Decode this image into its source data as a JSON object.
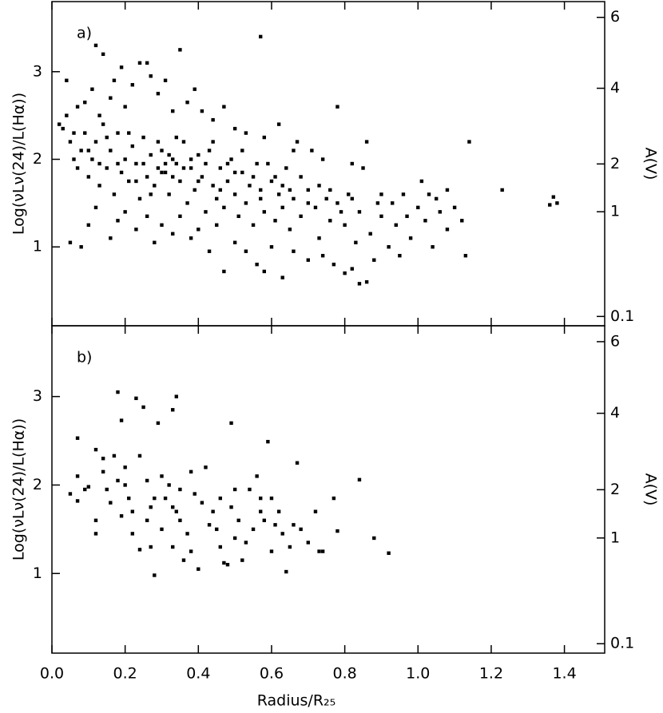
{
  "chart_data": [
    {
      "type": "scatter",
      "panel_label": "a)",
      "ylabel": "Log(νLν(24)/L(Hα))",
      "y2label": "A(V)",
      "color": "#000000",
      "x": [
        0.02,
        0.03,
        0.04,
        0.05,
        0.06,
        0.07,
        0.08,
        0.09,
        0.1,
        0.11,
        0.12,
        0.13,
        0.14,
        0.15,
        0.16,
        0.17,
        0.18,
        0.19,
        0.2,
        0.21,
        0.22,
        0.23,
        0.24,
        0.25,
        0.26,
        0.27,
        0.28,
        0.29,
        0.3,
        0.31,
        0.32,
        0.33,
        0.34,
        0.35,
        0.36,
        0.37,
        0.38,
        0.39,
        0.4,
        0.41,
        0.42,
        0.43,
        0.44,
        0.45,
        0.46,
        0.47,
        0.48,
        0.49,
        0.5,
        0.51,
        0.52,
        0.53,
        0.54,
        0.55,
        0.56,
        0.57,
        0.58,
        0.6,
        0.61,
        0.62,
        0.63,
        0.64,
        0.65,
        0.66,
        0.67,
        0.68,
        0.7,
        0.72,
        0.73,
        0.75,
        0.76,
        0.78,
        0.8,
        0.81,
        0.83,
        0.84,
        0.86,
        0.87,
        0.89,
        0.9,
        0.92,
        0.94,
        0.96,
        0.98,
        1.0,
        1.02,
        1.04,
        1.06,
        1.08,
        1.1,
        1.12,
        1.03,
        1.05,
        0.04,
        0.07,
        0.09,
        0.11,
        0.12,
        0.14,
        0.13,
        0.16,
        0.17,
        0.19,
        0.2,
        0.22,
        0.24,
        0.26,
        0.27,
        0.29,
        0.31,
        0.33,
        0.35,
        0.37,
        0.39,
        0.41,
        0.44,
        0.47,
        0.5,
        0.53,
        0.57,
        0.58,
        0.62,
        0.66,
        0.71,
        0.74,
        0.78,
        0.82,
        0.85,
        0.05,
        0.08,
        0.1,
        0.12,
        0.16,
        0.18,
        0.2,
        0.23,
        0.26,
        0.28,
        0.3,
        0.33,
        0.35,
        0.38,
        0.4,
        0.43,
        0.45,
        0.47,
        0.5,
        0.53,
        0.56,
        0.58,
        0.6,
        0.63,
        0.66,
        0.7,
        0.74,
        0.77,
        0.8,
        0.82,
        0.84,
        0.86,
        0.88,
        0.95,
        1.13,
        0.06,
        0.1,
        0.13,
        0.15,
        0.18,
        0.21,
        0.23,
        0.25,
        0.27,
        0.29,
        0.3,
        0.31,
        0.32,
        0.33,
        0.34,
        0.36,
        0.38,
        0.4,
        0.42,
        0.44,
        0.46,
        0.48,
        0.5,
        0.52,
        0.55,
        0.57,
        0.59,
        0.61,
        0.63,
        0.65,
        0.68,
        0.7,
        0.73,
        0.76,
        0.79,
        0.82,
        0.9,
        0.93,
        0.97,
        1.14,
        1.23,
        1.36,
        1.37,
        1.38,
        1.01,
        1.08
      ],
      "y": [
        2.4,
        2.35,
        2.5,
        2.2,
        2.0,
        1.9,
        2.1,
        2.3,
        1.8,
        2.0,
        2.2,
        1.7,
        2.4,
        1.9,
        2.1,
        1.6,
        2.3,
        1.85,
        2.0,
        1.75,
        2.15,
        1.95,
        1.55,
        2.25,
        1.8,
        2.05,
        1.7,
        1.9,
        2.1,
        1.85,
        1.6,
        2.0,
        1.95,
        1.75,
        2.2,
        1.5,
        1.9,
        1.65,
        2.05,
        1.8,
        1.4,
        2.1,
        1.7,
        1.55,
        1.9,
        1.45,
        1.75,
        2.0,
        1.6,
        1.35,
        1.85,
        1.5,
        1.7,
        1.25,
        1.95,
        1.55,
        1.4,
        1.75,
        1.3,
        1.6,
        1.45,
        1.9,
        1.2,
        1.55,
        2.2,
        1.35,
        1.65,
        1.45,
        1.1,
        1.55,
        1.3,
        1.5,
        1.25,
        1.6,
        1.05,
        1.4,
        2.2,
        1.15,
        1.5,
        1.35,
        1.0,
        1.25,
        1.6,
        1.1,
        1.45,
        1.3,
        1.0,
        1.4,
        1.2,
        1.45,
        1.3,
        1.6,
        1.55,
        2.9,
        2.6,
        2.65,
        2.8,
        3.3,
        3.2,
        2.5,
        2.7,
        2.9,
        3.05,
        2.6,
        2.85,
        3.1,
        3.1,
        2.95,
        2.75,
        2.9,
        2.55,
        3.25,
        2.65,
        2.8,
        2.55,
        2.45,
        2.6,
        2.35,
        2.3,
        3.4,
        2.25,
        2.4,
        2.1,
        2.1,
        2.0,
        2.6,
        1.95,
        1.9,
        1.05,
        1.0,
        1.25,
        1.45,
        1.1,
        1.3,
        1.4,
        1.2,
        1.35,
        1.05,
        1.25,
        1.15,
        1.35,
        1.1,
        1.2,
        0.95,
        1.25,
        0.72,
        1.05,
        0.95,
        0.8,
        0.72,
        1.0,
        0.65,
        0.95,
        0.85,
        0.9,
        0.8,
        0.7,
        0.75,
        0.58,
        0.6,
        0.85,
        0.9,
        0.9,
        2.3,
        2.1,
        1.95,
        2.25,
        1.95,
        2.3,
        1.75,
        1.95,
        1.6,
        2.2,
        1.85,
        1.95,
        2.05,
        1.8,
        2.25,
        1.9,
        2.0,
        1.75,
        1.95,
        2.2,
        1.65,
        1.95,
        1.85,
        2.1,
        1.8,
        1.65,
        1.95,
        1.8,
        1.7,
        1.65,
        1.8,
        1.5,
        1.7,
        1.65,
        1.4,
        1.55,
        1.6,
        1.5,
        1.35,
        2.2,
        1.65,
        1.48,
        1.57,
        1.5,
        1.75,
        1.65
      ],
      "ylim": [
        0.1,
        3.8
      ],
      "yticks": [
        1,
        2,
        3
      ],
      "y2scale": "extinction",
      "y2ticks": [
        0.1,
        1,
        2,
        4,
        6
      ]
    },
    {
      "type": "scatter",
      "panel_label": "b)",
      "ylabel": "Log(νLν(24)/L(Hα))",
      "y2label": "A(V)",
      "xlabel": "Radius/R₂₅",
      "color": "#000000",
      "x": [
        0.18,
        0.23,
        0.25,
        0.34,
        0.33,
        0.29,
        0.49,
        0.19,
        0.07,
        0.59,
        0.12,
        0.17,
        0.24,
        0.67,
        0.84,
        0.14,
        0.07,
        0.05,
        0.07,
        0.1,
        0.12,
        0.12,
        0.15,
        0.18,
        0.2,
        0.21,
        0.22,
        0.24,
        0.28,
        0.27,
        0.3,
        0.31,
        0.32,
        0.33,
        0.35,
        0.36,
        0.37,
        0.38,
        0.39,
        0.4,
        0.41,
        0.42,
        0.44,
        0.45,
        0.46,
        0.47,
        0.48,
        0.5,
        0.51,
        0.52,
        0.53,
        0.55,
        0.56,
        0.57,
        0.58,
        0.6,
        0.62,
        0.63,
        0.64,
        0.65,
        0.66,
        0.68,
        0.7,
        0.72,
        0.73,
        0.74,
        0.77,
        0.78,
        0.88,
        0.92,
        0.26,
        0.28,
        0.3,
        0.34,
        0.35,
        0.14,
        0.16,
        0.19,
        0.26,
        0.43,
        0.49,
        0.54,
        0.6,
        0.22,
        0.33,
        0.38,
        0.46,
        0.5,
        0.57,
        0.61,
        0.09,
        0.2,
        0.27
      ],
      "y": [
        3.05,
        2.98,
        2.88,
        3.0,
        2.85,
        2.7,
        2.7,
        2.73,
        2.53,
        2.49,
        2.4,
        2.33,
        2.33,
        2.25,
        2.06,
        2.3,
        2.1,
        1.9,
        1.82,
        1.98,
        1.6,
        1.45,
        1.95,
        2.05,
        2.0,
        1.85,
        1.7,
        1.27,
        0.98,
        1.3,
        1.5,
        1.85,
        2.0,
        1.75,
        1.6,
        1.15,
        1.45,
        2.15,
        1.9,
        1.05,
        1.8,
        2.2,
        1.7,
        1.5,
        1.85,
        1.12,
        1.1,
        1.95,
        1.6,
        1.15,
        1.35,
        1.5,
        2.1,
        1.85,
        1.6,
        1.25,
        1.7,
        1.45,
        1.02,
        1.3,
        1.55,
        1.5,
        1.35,
        1.7,
        1.25,
        1.25,
        1.85,
        1.48,
        1.4,
        1.23,
        2.05,
        1.85,
        2.1,
        1.7,
        1.95,
        2.15,
        1.8,
        1.65,
        1.6,
        1.55,
        1.75,
        1.95,
        1.85,
        1.45,
        1.3,
        1.25,
        1.3,
        1.4,
        1.7,
        1.55,
        1.95,
        2.2,
        1.75
      ],
      "xlim": [
        0,
        1.51
      ],
      "xticks": [
        {
          "value": 0,
          "label": "0.0"
        },
        0.2,
        0.4,
        0.6,
        0.8,
        {
          "value": 1,
          "label": "1.0"
        },
        1.2,
        1.4
      ],
      "ylim": [
        0.1,
        3.8
      ],
      "yticks": [
        1,
        2,
        3
      ],
      "y2scale": "extinction",
      "y2ticks": [
        0.1,
        1,
        2,
        4,
        6
      ]
    }
  ]
}
